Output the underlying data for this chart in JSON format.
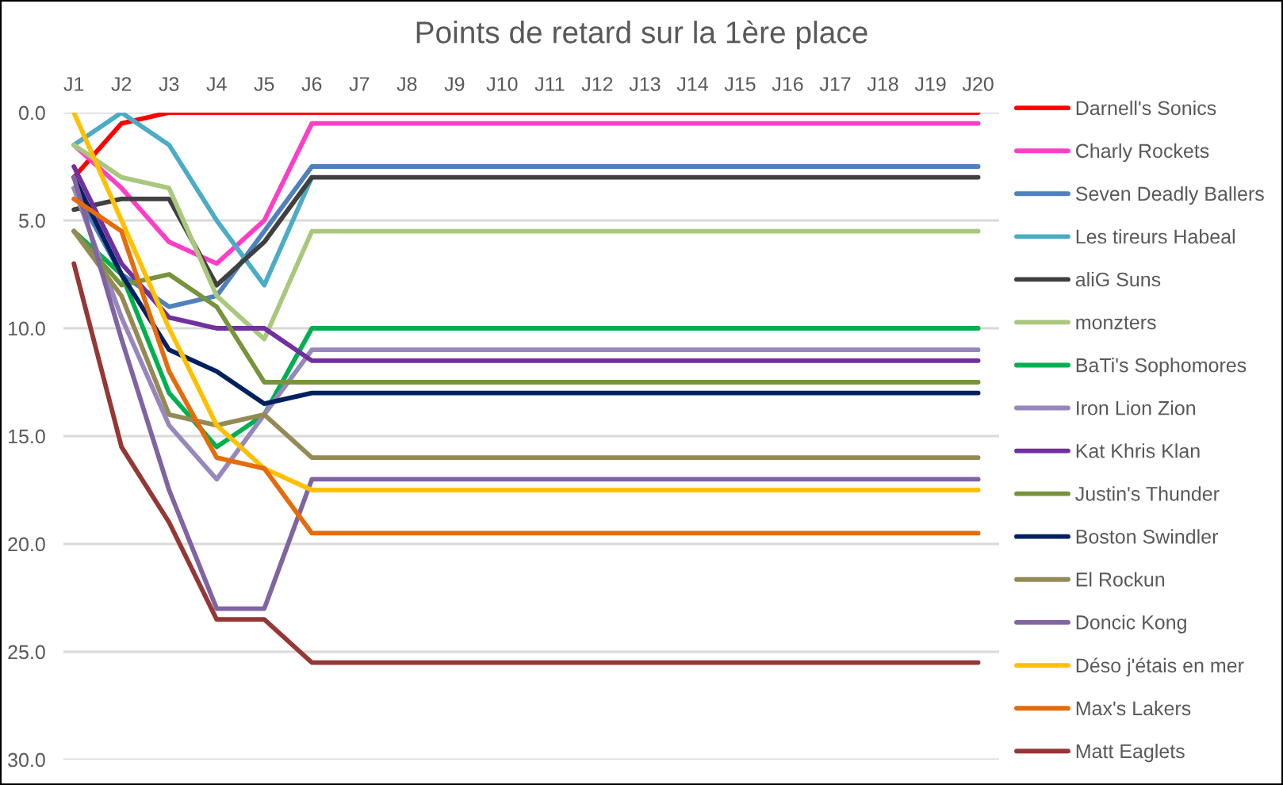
{
  "chart_data": {
    "type": "line",
    "title": "Points de retard sur la 1ère place",
    "categories": [
      "J1",
      "J2",
      "J3",
      "J4",
      "J5",
      "J6",
      "J7",
      "J8",
      "J9",
      "J10",
      "J11",
      "J12",
      "J13",
      "J14",
      "J15",
      "J16",
      "J17",
      "J18",
      "J19",
      "J20"
    ],
    "ylim": [
      30,
      0
    ],
    "yticks": [
      {
        "value": 0,
        "label": "0.0"
      },
      {
        "value": 5,
        "label": "5.0"
      },
      {
        "value": 10,
        "label": "10.0"
      },
      {
        "value": 15,
        "label": "15.0"
      },
      {
        "value": 20,
        "label": "20.0"
      },
      {
        "value": 25,
        "label": "25.0"
      },
      {
        "value": 30,
        "label": "30.0"
      }
    ],
    "grid": "y",
    "legend": "right",
    "marker": "none",
    "line_style": "solid",
    "series": [
      {
        "name": "Darnell's Sonics",
        "color": "#ff0000",
        "values": [
          3,
          0.5,
          0,
          0,
          0,
          0,
          0,
          0,
          0,
          0,
          0,
          0,
          0,
          0,
          0,
          0,
          0,
          0,
          0,
          0
        ]
      },
      {
        "name": "Charly Rockets",
        "color": "#ff3dc8",
        "values": [
          1.5,
          3.5,
          6,
          7,
          5,
          0.5,
          0.5,
          0.5,
          0.5,
          0.5,
          0.5,
          0.5,
          0.5,
          0.5,
          0.5,
          0.5,
          0.5,
          0.5,
          0.5,
          0.5
        ]
      },
      {
        "name": "Seven Deadly Ballers",
        "color": "#4f81bd",
        "values": [
          3.5,
          7.5,
          9,
          8.5,
          5.5,
          2.5,
          2.5,
          2.5,
          2.5,
          2.5,
          2.5,
          2.5,
          2.5,
          2.5,
          2.5,
          2.5,
          2.5,
          2.5,
          2.5,
          2.5
        ]
      },
      {
        "name": "Les tireurs Habeal",
        "color": "#4bacc6",
        "values": [
          1.5,
          0,
          1.5,
          5,
          8,
          3,
          null,
          null,
          null,
          null,
          null,
          null,
          null,
          null,
          null,
          null,
          null,
          null,
          null,
          null
        ]
      },
      {
        "name": "aliG Suns",
        "color": "#404040",
        "values": [
          4.5,
          4,
          4,
          8,
          6,
          3,
          3,
          3,
          3,
          3,
          3,
          3,
          3,
          3,
          3,
          3,
          3,
          3,
          3,
          3
        ]
      },
      {
        "name": "monzters",
        "color": "#a9c87c",
        "values": [
          1.5,
          3,
          3.5,
          8.5,
          10.5,
          5.5,
          5.5,
          5.5,
          5.5,
          5.5,
          5.5,
          5.5,
          5.5,
          5.5,
          5.5,
          5.5,
          5.5,
          5.5,
          5.5,
          5.5
        ]
      },
      {
        "name": "BaTi's Sophomores",
        "color": "#00b050",
        "values": [
          5.5,
          7.5,
          13,
          15.5,
          14,
          10,
          10,
          10,
          10,
          10,
          10,
          10,
          10,
          10,
          10,
          10,
          10,
          10,
          10,
          10
        ]
      },
      {
        "name": "Iron Lion Zion",
        "color": "#9787bd",
        "values": [
          3.5,
          9.5,
          14.5,
          17,
          14,
          11,
          11,
          11,
          11,
          11,
          11,
          11,
          11,
          11,
          11,
          11,
          11,
          11,
          11,
          11
        ]
      },
      {
        "name": "Kat Khris Klan",
        "color": "#7030a0",
        "values": [
          2.5,
          7,
          9.5,
          10,
          10,
          11.5,
          11.5,
          11.5,
          11.5,
          11.5,
          11.5,
          11.5,
          11.5,
          11.5,
          11.5,
          11.5,
          11.5,
          11.5,
          11.5,
          11.5
        ]
      },
      {
        "name": "Justin's Thunder",
        "color": "#77933c",
        "values": [
          5.5,
          8,
          7.5,
          9,
          12.5,
          12.5,
          12.5,
          12.5,
          12.5,
          12.5,
          12.5,
          12.5,
          12.5,
          12.5,
          12.5,
          12.5,
          12.5,
          12.5,
          12.5,
          12.5
        ]
      },
      {
        "name": "Boston Swindler",
        "color": "#002060",
        "values": [
          3,
          7.5,
          11,
          12,
          13.5,
          13,
          13,
          13,
          13,
          13,
          13,
          13,
          13,
          13,
          13,
          13,
          13,
          13,
          13,
          13
        ]
      },
      {
        "name": "El Rockun",
        "color": "#948a54",
        "values": [
          5.5,
          8.5,
          14,
          14.5,
          14,
          16,
          16,
          16,
          16,
          16,
          16,
          16,
          16,
          16,
          16,
          16,
          16,
          16,
          16,
          16
        ]
      },
      {
        "name": "Doncic Kong",
        "color": "#8064a2",
        "values": [
          3,
          10.5,
          17.5,
          23,
          23,
          17,
          17,
          17,
          17,
          17,
          17,
          17,
          17,
          17,
          17,
          17,
          17,
          17,
          17,
          17
        ]
      },
      {
        "name": "Déso j'étais en mer",
        "color": "#ffc000",
        "values": [
          0,
          5,
          10,
          14.5,
          16.5,
          17.5,
          17.5,
          17.5,
          17.5,
          17.5,
          17.5,
          17.5,
          17.5,
          17.5,
          17.5,
          17.5,
          17.5,
          17.5,
          17.5,
          17.5
        ]
      },
      {
        "name": "Max's Lakers",
        "color": "#e46c0a",
        "values": [
          4,
          5.5,
          12,
          16,
          16.5,
          19.5,
          19.5,
          19.5,
          19.5,
          19.5,
          19.5,
          19.5,
          19.5,
          19.5,
          19.5,
          19.5,
          19.5,
          19.5,
          19.5,
          19.5
        ]
      },
      {
        "name": "Matt Eaglets",
        "color": "#953735",
        "values": [
          7,
          15.5,
          19,
          23.5,
          23.5,
          25.5,
          25.5,
          25.5,
          25.5,
          25.5,
          25.5,
          25.5,
          25.5,
          25.5,
          25.5,
          25.5,
          25.5,
          25.5,
          25.5,
          25.5
        ]
      }
    ]
  }
}
